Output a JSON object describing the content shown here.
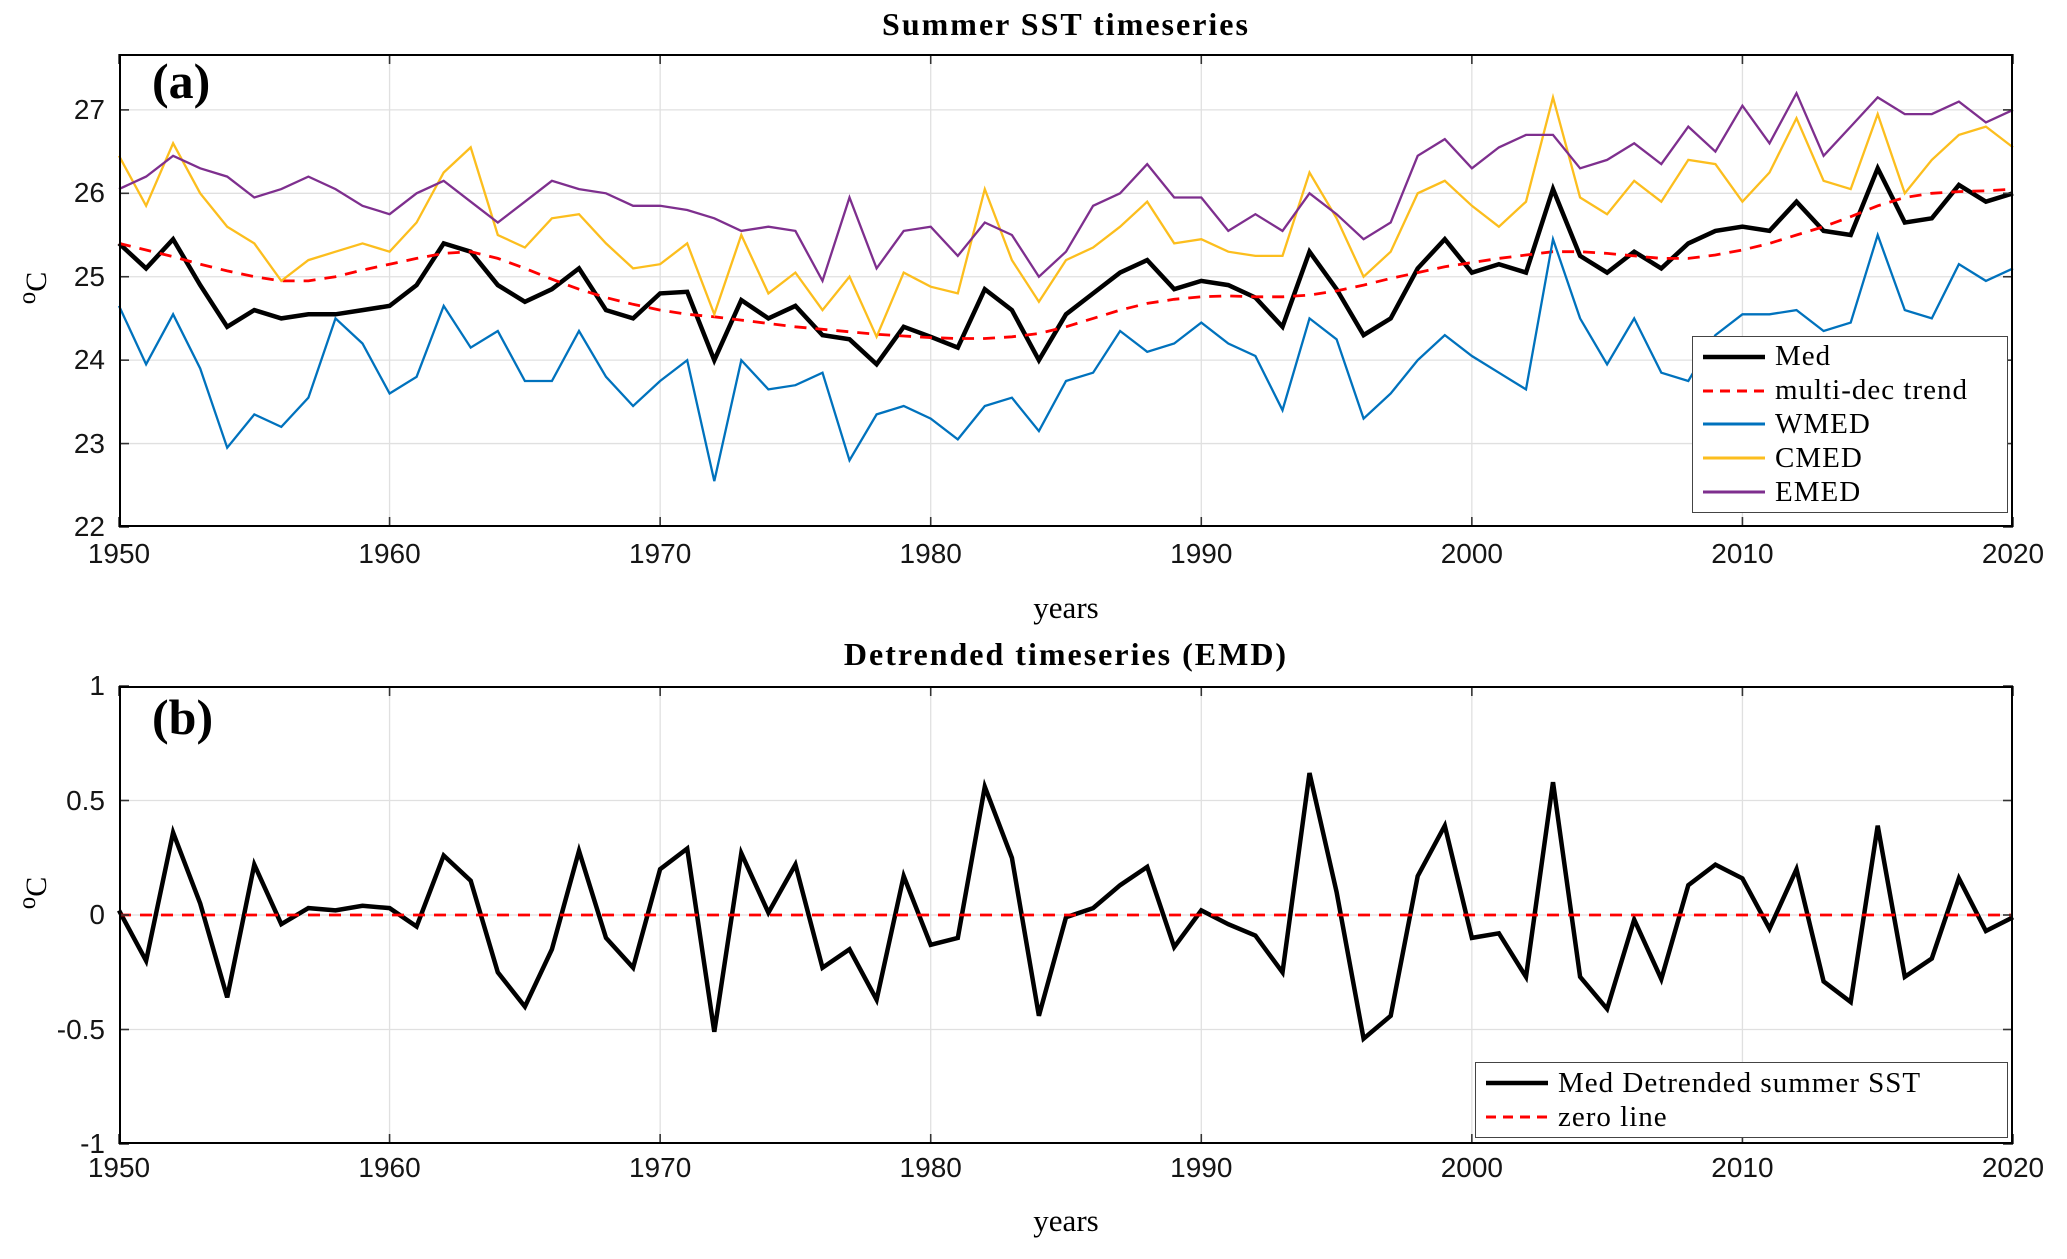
{
  "figure": {
    "background": "#ffffff"
  },
  "panel_a": {
    "corner_label": "(a)",
    "title": "Summer SST timeseries",
    "xlabel": "years",
    "ylabel_sup": "o",
    "ylabel_base": "C"
  },
  "panel_b": {
    "corner_label": "(b)",
    "title": "Detrended timeseries (EMD)",
    "xlabel": "years",
    "ylabel_sup": "o",
    "ylabel_base": "C"
  },
  "chart_data": [
    {
      "id": "panel_a",
      "type": "line",
      "title": "Summer SST timeseries",
      "xlabel": "years",
      "ylabel": "oC",
      "x_range": [
        1950,
        2020
      ],
      "y_range": [
        22,
        27.67
      ],
      "x_ticks": [
        1950,
        1960,
        1970,
        1980,
        1990,
        2000,
        2010,
        2020
      ],
      "x_tick_labels": [
        "1950",
        "1960",
        "1970",
        "1980",
        "1990",
        "2000",
        "2010",
        "2020"
      ],
      "y_ticks": [
        22,
        23,
        24,
        25,
        26,
        27
      ],
      "y_tick_labels": [
        "22",
        "23",
        "24",
        "25",
        "26",
        "27"
      ],
      "grid": true,
      "legend_position": "right-middle",
      "x": [
        1950,
        1951,
        1952,
        1953,
        1954,
        1955,
        1956,
        1957,
        1958,
        1959,
        1960,
        1961,
        1962,
        1963,
        1964,
        1965,
        1966,
        1967,
        1968,
        1969,
        1970,
        1971,
        1972,
        1973,
        1974,
        1975,
        1976,
        1977,
        1978,
        1979,
        1980,
        1981,
        1982,
        1983,
        1984,
        1985,
        1986,
        1987,
        1988,
        1989,
        1990,
        1991,
        1992,
        1993,
        1994,
        1995,
        1996,
        1997,
        1998,
        1999,
        2000,
        2001,
        2002,
        2003,
        2004,
        2005,
        2006,
        2007,
        2008,
        2009,
        2010,
        2011,
        2012,
        2013,
        2014,
        2015,
        2016,
        2017,
        2018,
        2019,
        2020
      ],
      "series": [
        {
          "name": "Med",
          "color": "#000000",
          "width": 4.5,
          "dash": null,
          "values": [
            25.4,
            25.1,
            25.45,
            24.9,
            24.4,
            24.6,
            24.5,
            24.55,
            24.55,
            24.6,
            24.65,
            24.9,
            25.4,
            25.3,
            24.9,
            24.7,
            24.85,
            25.1,
            24.6,
            24.5,
            24.8,
            24.82,
            24.0,
            24.72,
            24.5,
            24.65,
            24.3,
            24.25,
            23.95,
            24.4,
            24.28,
            24.15,
            24.85,
            24.6,
            24.0,
            24.55,
            24.8,
            25.05,
            25.2,
            24.85,
            24.95,
            24.9,
            24.75,
            24.4,
            25.3,
            24.85,
            24.3,
            24.5,
            25.1,
            25.45,
            25.05,
            25.15,
            25.05,
            26.05,
            25.25,
            25.05,
            25.3,
            25.1,
            25.4,
            25.55,
            25.6,
            25.55,
            25.9,
            25.55,
            25.5,
            26.3,
            25.65,
            25.7,
            26.1,
            25.9,
            26.0
          ]
        },
        {
          "name": "multi-dec trend",
          "color": "#ff0000",
          "width": 2.8,
          "dash": "12 9",
          "values": [
            25.4,
            25.32,
            25.24,
            25.15,
            25.07,
            25.0,
            24.95,
            24.95,
            25.0,
            25.08,
            25.15,
            25.22,
            25.28,
            25.3,
            25.22,
            25.1,
            24.97,
            24.85,
            24.75,
            24.67,
            24.6,
            24.55,
            24.52,
            24.48,
            24.44,
            24.4,
            24.37,
            24.34,
            24.31,
            24.29,
            24.27,
            24.26,
            24.26,
            24.28,
            24.32,
            24.4,
            24.5,
            24.6,
            24.68,
            24.73,
            24.76,
            24.77,
            24.76,
            24.76,
            24.78,
            24.83,
            24.9,
            24.98,
            25.05,
            25.12,
            25.17,
            25.22,
            25.26,
            25.3,
            25.3,
            25.28,
            25.25,
            25.22,
            25.22,
            25.26,
            25.32,
            25.4,
            25.5,
            25.6,
            25.72,
            25.85,
            25.95,
            26.0,
            26.02,
            26.03,
            26.05
          ]
        },
        {
          "name": "WMED",
          "color": "#0072bd",
          "width": 2.3,
          "dash": null,
          "values": [
            24.65,
            23.95,
            24.55,
            23.9,
            22.95,
            23.35,
            23.2,
            23.55,
            24.5,
            24.2,
            23.6,
            23.8,
            24.65,
            24.15,
            24.35,
            23.75,
            23.75,
            24.35,
            23.8,
            23.45,
            23.75,
            24.0,
            22.55,
            24.0,
            23.65,
            23.7,
            23.85,
            22.8,
            23.35,
            23.45,
            23.3,
            23.05,
            23.45,
            23.55,
            23.15,
            23.75,
            23.85,
            24.35,
            24.1,
            24.2,
            24.45,
            24.2,
            24.05,
            23.4,
            24.5,
            24.25,
            23.3,
            23.6,
            24.0,
            24.3,
            24.05,
            23.85,
            23.65,
            25.45,
            24.5,
            23.95,
            24.5,
            23.85,
            23.75,
            24.3,
            24.55,
            24.55,
            24.6,
            24.35,
            24.45,
            25.5,
            24.6,
            24.5,
            25.15,
            24.95,
            25.1
          ]
        },
        {
          "name": "CMED",
          "color": "#fcbe1e",
          "width": 2.3,
          "dash": null,
          "values": [
            26.45,
            25.85,
            26.6,
            26.0,
            25.6,
            25.4,
            24.95,
            25.2,
            25.3,
            25.4,
            25.3,
            25.65,
            26.25,
            26.55,
            25.5,
            25.35,
            25.7,
            25.75,
            25.4,
            25.1,
            25.15,
            25.4,
            24.55,
            25.5,
            24.8,
            25.05,
            24.6,
            25.0,
            24.28,
            25.05,
            24.88,
            24.8,
            26.05,
            25.2,
            24.7,
            25.2,
            25.35,
            25.6,
            25.9,
            25.4,
            25.45,
            25.3,
            25.25,
            25.25,
            26.25,
            25.7,
            25.0,
            25.3,
            26.0,
            26.15,
            25.85,
            25.6,
            25.9,
            27.15,
            25.95,
            25.75,
            26.15,
            25.9,
            26.4,
            26.35,
            25.9,
            26.25,
            26.9,
            26.15,
            26.05,
            26.95,
            26.0,
            26.4,
            26.7,
            26.8,
            26.55
          ]
        },
        {
          "name": "EMED",
          "color": "#7e2f8e",
          "width": 2.3,
          "dash": null,
          "values": [
            26.05,
            26.2,
            26.45,
            26.3,
            26.2,
            25.95,
            26.05,
            26.2,
            26.05,
            25.85,
            25.75,
            26.0,
            26.15,
            25.9,
            25.65,
            25.9,
            26.15,
            26.05,
            26.0,
            25.85,
            25.85,
            25.8,
            25.7,
            25.55,
            25.6,
            25.55,
            24.95,
            25.95,
            25.1,
            25.55,
            25.6,
            25.25,
            25.65,
            25.5,
            25.0,
            25.3,
            25.85,
            26.0,
            26.35,
            25.95,
            25.95,
            25.55,
            25.75,
            25.55,
            26.0,
            25.75,
            25.45,
            25.65,
            26.45,
            26.65,
            26.3,
            26.55,
            26.7,
            26.7,
            26.3,
            26.4,
            26.6,
            26.35,
            26.8,
            26.5,
            27.05,
            26.6,
            27.2,
            26.45,
            26.8,
            27.15,
            26.95,
            26.95,
            27.1,
            26.85,
            27.0
          ]
        }
      ]
    },
    {
      "id": "panel_b",
      "type": "line",
      "title": "Detrended timeseries (EMD)",
      "xlabel": "years",
      "ylabel": "oC",
      "x_range": [
        1950,
        2020
      ],
      "y_range": [
        -1,
        1
      ],
      "x_ticks": [
        1950,
        1960,
        1970,
        1980,
        1990,
        2000,
        2010,
        2020
      ],
      "x_tick_labels": [
        "1950",
        "1960",
        "1970",
        "1980",
        "1990",
        "2000",
        "2010",
        "2020"
      ],
      "y_ticks": [
        -1,
        -0.5,
        0,
        0.5,
        1
      ],
      "y_tick_labels": [
        "-1",
        "-0.5",
        "0",
        "0.5",
        "1"
      ],
      "grid": true,
      "legend_position": "bottom-right",
      "x": [
        1950,
        1951,
        1952,
        1953,
        1954,
        1955,
        1956,
        1957,
        1958,
        1959,
        1960,
        1961,
        1962,
        1963,
        1964,
        1965,
        1966,
        1967,
        1968,
        1969,
        1970,
        1971,
        1972,
        1973,
        1974,
        1975,
        1976,
        1977,
        1978,
        1979,
        1980,
        1981,
        1982,
        1983,
        1984,
        1985,
        1986,
        1987,
        1988,
        1989,
        1990,
        1991,
        1992,
        1993,
        1994,
        1995,
        1996,
        1997,
        1998,
        1999,
        2000,
        2001,
        2002,
        2003,
        2004,
        2005,
        2006,
        2007,
        2008,
        2009,
        2010,
        2011,
        2012,
        2013,
        2014,
        2015,
        2016,
        2017,
        2018,
        2019,
        2020
      ],
      "series": [
        {
          "name": "Med Detrended summer SST",
          "color": "#000000",
          "width": 4.5,
          "dash": null,
          "values": [
            0.02,
            -0.2,
            0.36,
            0.05,
            -0.36,
            0.22,
            -0.04,
            0.03,
            0.02,
            0.04,
            0.03,
            -0.05,
            0.26,
            0.15,
            -0.25,
            -0.4,
            -0.15,
            0.28,
            -0.1,
            -0.23,
            0.2,
            0.29,
            -0.51,
            0.27,
            0.01,
            0.22,
            -0.23,
            -0.15,
            -0.37,
            0.17,
            -0.13,
            -0.1,
            0.56,
            0.25,
            -0.44,
            -0.01,
            0.03,
            0.13,
            0.21,
            -0.14,
            0.02,
            -0.04,
            -0.09,
            -0.25,
            0.62,
            0.1,
            -0.54,
            -0.44,
            0.17,
            0.39,
            -0.1,
            -0.08,
            -0.27,
            0.58,
            -0.27,
            -0.41,
            -0.02,
            -0.28,
            0.13,
            0.22,
            0.16,
            -0.06,
            0.2,
            -0.29,
            -0.38,
            0.39,
            -0.27,
            -0.19,
            0.16,
            -0.07,
            -0.01
          ]
        },
        {
          "name": "zero line",
          "color": "#ff0000",
          "width": 2.8,
          "dash": "12 9",
          "constant": 0
        }
      ]
    }
  ],
  "style": {
    "grid_color": "#e0e0e0",
    "axis_color": "#000000",
    "tick_color": "#333333"
  }
}
